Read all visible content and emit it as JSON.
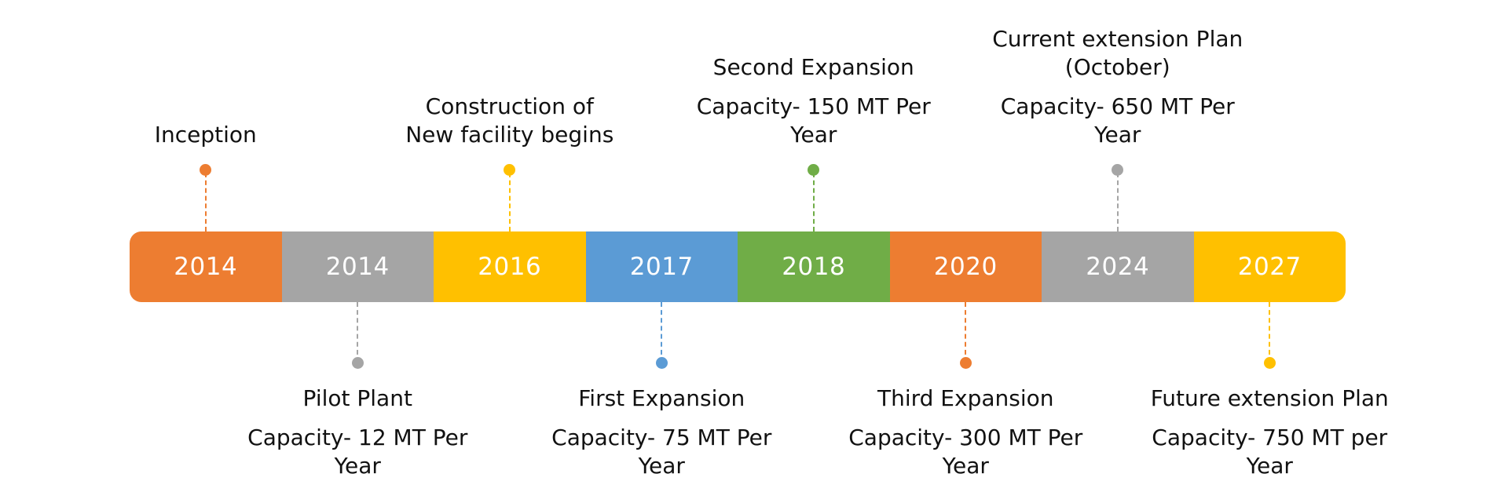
{
  "timeline": {
    "colors": {
      "orange": "#ED7D31",
      "gray": "#A5A5A5",
      "yellow": "#FFC000",
      "blue": "#5B9BD5",
      "green": "#70AD47"
    },
    "milestones": [
      {
        "year": "2014",
        "color": "#ED7D31",
        "side": "top",
        "title": "Inception",
        "capacity": ""
      },
      {
        "year": "2014",
        "color": "#A5A5A5",
        "side": "bottom",
        "title": "Pilot Plant",
        "capacity": "Capacity- 12 MT Per Year"
      },
      {
        "year": "2016",
        "color": "#FFC000",
        "side": "top",
        "title": "Construction of New facility begins",
        "capacity": ""
      },
      {
        "year": "2017",
        "color": "#5B9BD5",
        "side": "bottom",
        "title": "First Expansion",
        "capacity": "Capacity- 75 MT Per Year"
      },
      {
        "year": "2018",
        "color": "#70AD47",
        "side": "top",
        "title": "Second Expansion",
        "capacity": "Capacity- 150 MT Per Year"
      },
      {
        "year": "2020",
        "color": "#ED7D31",
        "side": "bottom",
        "title": "Third Expansion",
        "capacity": "Capacity- 300 MT Per Year"
      },
      {
        "year": "2024",
        "color": "#A5A5A5",
        "side": "top",
        "title": "Current extension Plan (October)",
        "capacity": "Capacity- 650 MT Per Year"
      },
      {
        "year": "2027",
        "color": "#FFC000",
        "side": "bottom",
        "title": "Future extension Plan",
        "capacity": "Capacity- 750 MT per Year"
      }
    ]
  }
}
